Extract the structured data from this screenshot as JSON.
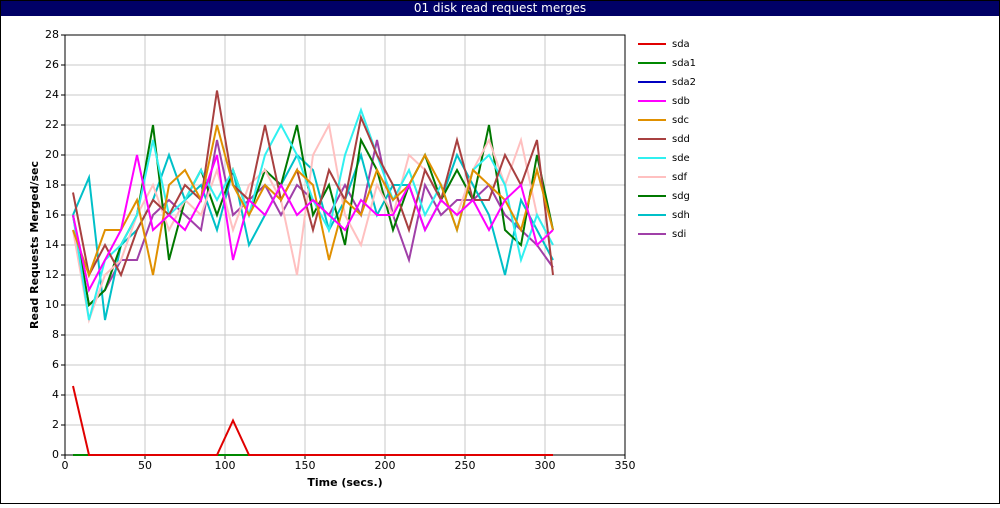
{
  "chart_data": {
    "type": "line",
    "title": "01 disk read request merges",
    "x_label": "Time (secs.)",
    "y_label": "Read Requests Merged/sec",
    "x": [
      5,
      15,
      25,
      35,
      45,
      55,
      65,
      75,
      85,
      95,
      105,
      115,
      125,
      135,
      145,
      155,
      165,
      175,
      185,
      195,
      205,
      215,
      225,
      235,
      245,
      255,
      265,
      275,
      285,
      295,
      305
    ],
    "series": [
      {
        "name": "sda",
        "color": "#e00000",
        "values": [
          4.6,
          0,
          0,
          0,
          0,
          0,
          0,
          0,
          0,
          0,
          2.3,
          0,
          0,
          0,
          0,
          0,
          0,
          0,
          0,
          0,
          0,
          0,
          0,
          0,
          0,
          0,
          0,
          0,
          0,
          0,
          0
        ]
      },
      {
        "name": "sda1",
        "color": "#008800",
        "values": [
          0,
          0,
          0,
          0,
          0,
          0,
          0,
          0,
          0,
          0,
          0,
          0,
          0,
          0,
          0,
          0,
          0,
          0,
          0,
          0,
          0,
          0,
          0,
          0,
          0,
          0,
          0,
          0,
          0,
          0,
          0
        ]
      },
      {
        "name": "sda2",
        "color": "#0000c0",
        "values": [
          0,
          0,
          0,
          0,
          0,
          0,
          0,
          0,
          0,
          0,
          0,
          0,
          0,
          0,
          0,
          0,
          0,
          0,
          0,
          0,
          0,
          0,
          0,
          0,
          0,
          0,
          0,
          0,
          0,
          0,
          0
        ]
      },
      {
        "name": "sdb",
        "color": "#ff00ff",
        "values": [
          16,
          11,
          13,
          15,
          20,
          15,
          16,
          15,
          17,
          20,
          13,
          17,
          16,
          18,
          16,
          17,
          16,
          15,
          17,
          16,
          16,
          18,
          15,
          17,
          16,
          17,
          15,
          17,
          18,
          14,
          15
        ]
      },
      {
        "name": "sdc",
        "color": "#e09000",
        "values": [
          15,
          12,
          15,
          15,
          17,
          12,
          18,
          19,
          17,
          22,
          18,
          16,
          18,
          17,
          19,
          18,
          13,
          17,
          16,
          19,
          17,
          18,
          20,
          18,
          15,
          19,
          18,
          17,
          15,
          19,
          15
        ]
      },
      {
        "name": "sdd",
        "color": "#a84040",
        "values": [
          17.5,
          12,
          14,
          12,
          15,
          17,
          16,
          18,
          17,
          24.3,
          18,
          17,
          22,
          17,
          19,
          15,
          19,
          17,
          22.5,
          20,
          18,
          15,
          19,
          17,
          21,
          17,
          17,
          20,
          18,
          21,
          12
        ]
      },
      {
        "name": "sde",
        "color": "#30f0f0",
        "values": [
          16,
          9,
          13,
          14,
          16,
          21,
          16,
          17,
          19,
          17,
          19,
          16,
          20,
          22,
          20,
          17,
          15,
          20,
          23,
          20,
          17,
          19,
          16,
          18,
          15,
          19,
          20,
          18,
          13,
          16,
          14
        ]
      },
      {
        "name": "sdf",
        "color": "#ffc0c0",
        "values": [
          15,
          9,
          12,
          13,
          16,
          18,
          15,
          17,
          16,
          19,
          15,
          18,
          19,
          17,
          12,
          20,
          22,
          16,
          14,
          18,
          16,
          20,
          19,
          17,
          16,
          19,
          21,
          18,
          21,
          16,
          14
        ]
      },
      {
        "name": "sdg",
        "color": "#007800",
        "values": [
          16,
          10,
          11,
          14,
          16,
          22,
          13,
          17,
          19,
          16,
          19,
          16,
          19,
          18,
          22,
          16,
          18,
          14,
          21,
          19,
          15,
          18,
          20,
          17,
          19,
          17,
          22,
          15,
          14,
          20,
          15
        ]
      },
      {
        "name": "sdh",
        "color": "#00c0c8",
        "values": [
          16,
          18.5,
          9,
          14,
          15,
          17,
          20,
          17,
          18,
          15,
          19,
          14,
          16,
          18,
          20,
          19,
          15,
          17,
          20,
          16,
          18,
          18,
          15,
          17,
          20,
          18,
          16,
          12,
          17,
          15,
          13
        ]
      },
      {
        "name": "sdi",
        "color": "#a040a8",
        "values": [
          16,
          10,
          11,
          13,
          13,
          16,
          17,
          16,
          15,
          21,
          16,
          17,
          18,
          16,
          18,
          17,
          16,
          18,
          16,
          21,
          16,
          13,
          18,
          16,
          17,
          17,
          18,
          16,
          15,
          14,
          12.5
        ]
      }
    ],
    "xlim": [
      0,
      350
    ],
    "xticks": [
      0,
      50,
      100,
      150,
      200,
      250,
      300,
      350
    ],
    "ylim": [
      0,
      28
    ],
    "yticks": [
      0,
      2,
      4,
      6,
      8,
      10,
      12,
      14,
      16,
      18,
      20,
      22,
      24,
      26,
      28
    ],
    "grid": true,
    "legend": "right"
  }
}
